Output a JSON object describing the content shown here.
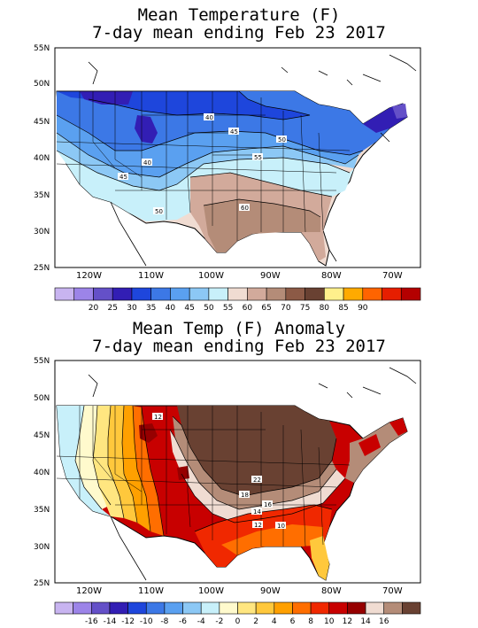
{
  "top": {
    "title_line1": "Mean Temperature (F)",
    "title_line2": "7-day mean ending Feb 23 2017",
    "lat_labels": [
      "55N",
      "50N",
      "45N",
      "40N",
      "35N",
      "30N",
      "25N"
    ],
    "lon_labels": [
      "120W",
      "110W",
      "100W",
      "90W",
      "80W",
      "70W"
    ],
    "contour_labels": [
      "40",
      "45",
      "50",
      "55",
      "60",
      "40",
      "45",
      "50"
    ],
    "colorbar": {
      "colors": [
        "#c8b4f0",
        "#9c84e8",
        "#6450c8",
        "#321eb4",
        "#1e46dc",
        "#3c78e6",
        "#5aa0f0",
        "#8cc8f5",
        "#c8f0fa",
        "#f0dcd2",
        "#d2aa9b",
        "#b48c78",
        "#8c5a46",
        "#694132",
        "#fff08c",
        "#ffaa00",
        "#ff6400",
        "#e61e00",
        "#b40000"
      ],
      "labels": [
        "20",
        "25",
        "30",
        "35",
        "40",
        "45",
        "50",
        "55",
        "60",
        "65",
        "70",
        "75",
        "80",
        "85",
        "90"
      ]
    }
  },
  "bottom": {
    "title_line1": "Mean Temp (F) Anomaly",
    "title_line2": "7-day mean ending Feb 23 2017",
    "lat_labels": [
      "55N",
      "50N",
      "45N",
      "40N",
      "35N",
      "30N",
      "25N"
    ],
    "lon_labels": [
      "120W",
      "110W",
      "100W",
      "90W",
      "80W",
      "70W"
    ],
    "contour_labels": [
      "12",
      "22",
      "18",
      "16",
      "14",
      "12",
      "10"
    ],
    "colorbar": {
      "colors": [
        "#c8b4f0",
        "#9c84e8",
        "#6450c8",
        "#321eb4",
        "#1e46dc",
        "#3c78e6",
        "#5aa0f0",
        "#8cc8f5",
        "#c8f0fa",
        "#fffacd",
        "#ffe680",
        "#ffc83c",
        "#ffa000",
        "#ff6e00",
        "#f02800",
        "#c80000",
        "#960000",
        "#f0dcd2",
        "#b48c78",
        "#694132"
      ],
      "labels": [
        "-16",
        "-14",
        "-12",
        "-10",
        "-8",
        "-6",
        "-4",
        "-2",
        "0",
        "2",
        "4",
        "6",
        "8",
        "10",
        "12",
        "14",
        "16"
      ]
    }
  }
}
